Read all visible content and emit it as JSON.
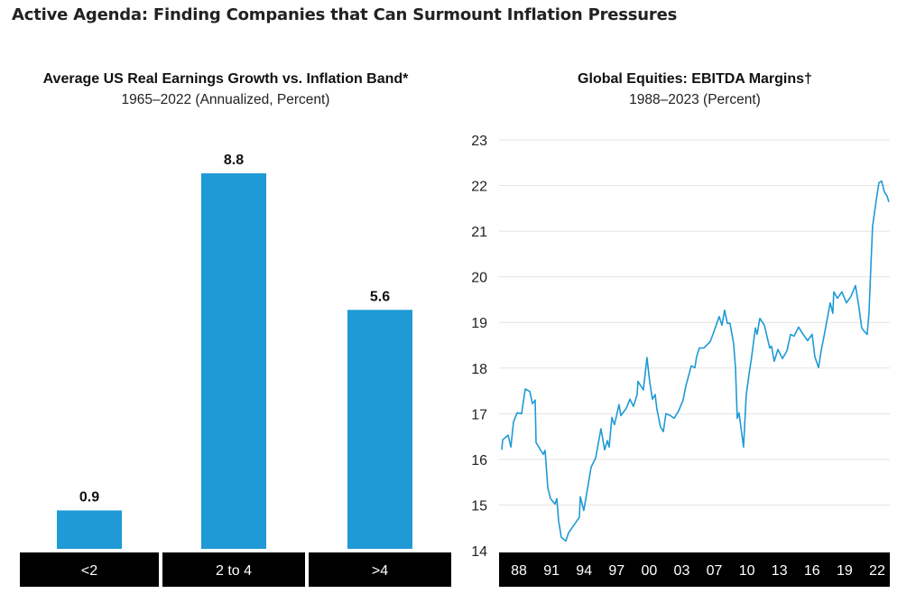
{
  "page_title": "Active Agenda: Finding Companies that Can Surmount Inflation Pressures",
  "colors": {
    "bar": "#1f9ad6",
    "line": "#1f9ad6",
    "axis_band": "#000000",
    "grid": "#e3e3e3"
  },
  "chart_data": [
    {
      "type": "bar",
      "title": "Average US Real Earnings Growth vs. Inflation Band*",
      "subtitle": "1965–2022 (Annualized, Percent)",
      "categories": [
        "<2",
        "2 to 4",
        ">4"
      ],
      "values": [
        0.9,
        8.8,
        5.6
      ],
      "data_labels": [
        "0.9",
        "8.8",
        "5.6"
      ],
      "ylim": [
        0,
        8.8
      ],
      "grid": false
    },
    {
      "type": "line",
      "title": "Global Equities: EBITDA Margins†",
      "subtitle": "1988–2023 (Percent)",
      "x_tick_labels": [
        "88",
        "91",
        "94",
        "97",
        "00",
        "03",
        "07",
        "10",
        "13",
        "16",
        "19",
        "22"
      ],
      "y_ticks": [
        14,
        15,
        16,
        17,
        18,
        19,
        20,
        21,
        22,
        23
      ],
      "ylim": [
        14,
        23
      ],
      "xlim": [
        1988,
        2023.5
      ],
      "grid": true,
      "points": [
        [
          1988.25,
          16.21
        ],
        [
          1988.33,
          16.43
        ],
        [
          1988.82,
          16.53
        ],
        [
          1989.07,
          16.27
        ],
        [
          1989.31,
          16.82
        ],
        [
          1989.64,
          17.02
        ],
        [
          1990.05,
          17.0
        ],
        [
          1990.38,
          17.54
        ],
        [
          1990.79,
          17.49
        ],
        [
          1991.03,
          17.22
        ],
        [
          1991.28,
          17.3
        ],
        [
          1991.36,
          16.37
        ],
        [
          1991.69,
          16.24
        ],
        [
          1992.02,
          16.11
        ],
        [
          1992.18,
          16.2
        ],
        [
          1992.43,
          15.38
        ],
        [
          1992.67,
          15.14
        ],
        [
          1993.08,
          15.02
        ],
        [
          1993.25,
          15.14
        ],
        [
          1993.41,
          14.65
        ],
        [
          1993.66,
          14.29
        ],
        [
          1994.07,
          14.21
        ],
        [
          1994.31,
          14.39
        ],
        [
          1994.89,
          14.59
        ],
        [
          1995.3,
          14.73
        ],
        [
          1995.38,
          15.18
        ],
        [
          1995.7,
          14.88
        ],
        [
          1995.95,
          15.24
        ],
        [
          1996.36,
          15.83
        ],
        [
          1996.77,
          16.03
        ],
        [
          1997.26,
          16.67
        ],
        [
          1997.59,
          16.21
        ],
        [
          1997.84,
          16.41
        ],
        [
          1998.0,
          16.27
        ],
        [
          1998.25,
          16.92
        ],
        [
          1998.49,
          16.76
        ],
        [
          1998.9,
          17.2
        ],
        [
          1999.07,
          16.96
        ],
        [
          1999.56,
          17.12
        ],
        [
          1999.89,
          17.32
        ],
        [
          2000.21,
          17.16
        ],
        [
          2000.54,
          17.42
        ],
        [
          2000.62,
          17.71
        ],
        [
          2001.11,
          17.52
        ],
        [
          2001.44,
          18.23
        ],
        [
          2001.69,
          17.69
        ],
        [
          2001.93,
          17.32
        ],
        [
          2002.18,
          17.42
        ],
        [
          2002.34,
          17.1
        ],
        [
          2002.67,
          16.71
        ],
        [
          2002.92,
          16.61
        ],
        [
          2003.16,
          17.0
        ],
        [
          2003.57,
          16.96
        ],
        [
          2003.9,
          16.9
        ],
        [
          2004.31,
          17.06
        ],
        [
          2004.72,
          17.3
        ],
        [
          2004.97,
          17.61
        ],
        [
          2005.46,
          18.05
        ],
        [
          2005.79,
          18.01
        ],
        [
          2005.95,
          18.25
        ],
        [
          2006.2,
          18.44
        ],
        [
          2006.6,
          18.44
        ],
        [
          2007.18,
          18.58
        ],
        [
          2007.43,
          18.74
        ],
        [
          2008.0,
          19.13
        ],
        [
          2008.25,
          18.94
        ],
        [
          2008.49,
          19.27
        ],
        [
          2008.74,
          18.98
        ],
        [
          2008.98,
          18.98
        ],
        [
          2009.31,
          18.54
        ],
        [
          2009.48,
          18.0
        ],
        [
          2009.64,
          16.9
        ],
        [
          2009.8,
          17.02
        ],
        [
          2010.05,
          16.57
        ],
        [
          2010.21,
          16.27
        ],
        [
          2010.46,
          17.42
        ],
        [
          2010.7,
          17.85
        ],
        [
          2010.95,
          18.25
        ],
        [
          2011.28,
          18.88
        ],
        [
          2011.44,
          18.74
        ],
        [
          2011.69,
          19.09
        ],
        [
          2012.1,
          18.94
        ],
        [
          2012.59,
          18.44
        ],
        [
          2012.75,
          18.48
        ],
        [
          2013.0,
          18.15
        ],
        [
          2013.33,
          18.41
        ],
        [
          2013.74,
          18.21
        ],
        [
          2014.15,
          18.38
        ],
        [
          2014.48,
          18.74
        ],
        [
          2014.8,
          18.7
        ],
        [
          2015.21,
          18.9
        ],
        [
          2015.62,
          18.74
        ],
        [
          2016.03,
          18.6
        ],
        [
          2016.44,
          18.74
        ],
        [
          2016.69,
          18.25
        ],
        [
          2017.02,
          18.01
        ],
        [
          2017.26,
          18.38
        ],
        [
          2017.51,
          18.68
        ],
        [
          2017.75,
          19.0
        ],
        [
          2018.08,
          19.43
        ],
        [
          2018.33,
          19.2
        ],
        [
          2018.41,
          19.67
        ],
        [
          2018.74,
          19.53
        ],
        [
          2019.15,
          19.67
        ],
        [
          2019.56,
          19.43
        ],
        [
          2019.97,
          19.57
        ],
        [
          2020.38,
          19.81
        ],
        [
          2020.7,
          19.33
        ],
        [
          2020.95,
          18.88
        ],
        [
          2021.2,
          18.8
        ],
        [
          2021.44,
          18.74
        ],
        [
          2021.61,
          19.2
        ],
        [
          2021.77,
          20.18
        ],
        [
          2021.93,
          21.11
        ],
        [
          2022.26,
          21.67
        ],
        [
          2022.51,
          22.06
        ],
        [
          2022.75,
          22.1
        ],
        [
          2023.0,
          21.86
        ],
        [
          2023.25,
          21.77
        ],
        [
          2023.41,
          21.64
        ]
      ]
    }
  ]
}
